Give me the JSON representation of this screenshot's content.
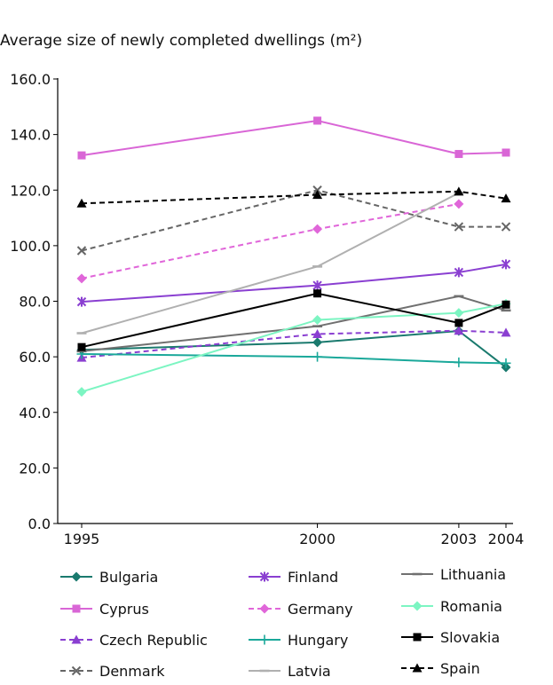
{
  "chart_data": {
    "type": "line",
    "title": "Average size of newly completed dwellings (m²)",
    "xlabel": "",
    "ylabel": "",
    "x": [
      1995,
      2000,
      2003,
      2004
    ],
    "x_tick_labels": [
      "1995",
      "2000",
      "2003",
      "2004"
    ],
    "ylim": [
      0,
      160
    ],
    "y_ticks": [
      0,
      20,
      40,
      60,
      80,
      100,
      120,
      140,
      160
    ],
    "y_tick_labels": [
      "0.0",
      "20.0",
      "40.0",
      "60.0",
      "80.0",
      "100.0",
      "120.0",
      "140.0",
      "160.0"
    ],
    "grid": false,
    "legend_position": "bottom",
    "series": [
      {
        "name": "Bulgaria",
        "values": [
          62.5,
          65.2,
          69.3,
          56.2
        ],
        "color": "#1a7a6e",
        "dash": "solid",
        "marker": "diamond"
      },
      {
        "name": "Cyprus",
        "values": [
          132.5,
          145.0,
          133.0,
          133.5
        ],
        "color": "#d966d6",
        "dash": "solid",
        "marker": "square"
      },
      {
        "name": "Czech Republic",
        "values": [
          59.7,
          68.2,
          69.4,
          68.7
        ],
        "color": "#8a3fd1",
        "dash": "dashed",
        "marker": "triangle"
      },
      {
        "name": "Denmark",
        "values": [
          98.2,
          120.0,
          106.8,
          106.8
        ],
        "color": "#666666",
        "dash": "dashed",
        "marker": "x"
      },
      {
        "name": "Finland",
        "values": [
          79.8,
          85.7,
          90.4,
          93.3
        ],
        "color": "#8a3fd1",
        "dash": "solid",
        "marker": "star"
      },
      {
        "name": "Germany",
        "values": [
          88.2,
          106.0,
          115.0,
          null
        ],
        "color": "#e066d9",
        "dash": "dashed",
        "marker": "diamond"
      },
      {
        "name": "Hungary",
        "values": [
          61.0,
          60.0,
          58.0,
          57.7
        ],
        "color": "#1aa89a",
        "dash": "solid",
        "marker": "plus"
      },
      {
        "name": "Latvia",
        "values": [
          68.5,
          92.5,
          119.0,
          null
        ],
        "color": "#b0b0b0",
        "dash": "solid",
        "marker": "dash"
      },
      {
        "name": "Lithuania",
        "values": [
          62.0,
          71.0,
          81.8,
          76.7
        ],
        "color": "#707070",
        "dash": "solid",
        "marker": "dash"
      },
      {
        "name": "Romania",
        "values": [
          47.4,
          73.3,
          75.8,
          79.1
        ],
        "color": "#7cf5c2",
        "dash": "solid",
        "marker": "diamond"
      },
      {
        "name": "Slovakia",
        "values": [
          63.5,
          82.8,
          72.2,
          78.8
        ],
        "color": "#000000",
        "dash": "solid",
        "marker": "square"
      },
      {
        "name": "Spain",
        "values": [
          115.2,
          118.3,
          119.5,
          117.0
        ],
        "color": "#000000",
        "dash": "dashed",
        "marker": "triangle"
      }
    ]
  }
}
